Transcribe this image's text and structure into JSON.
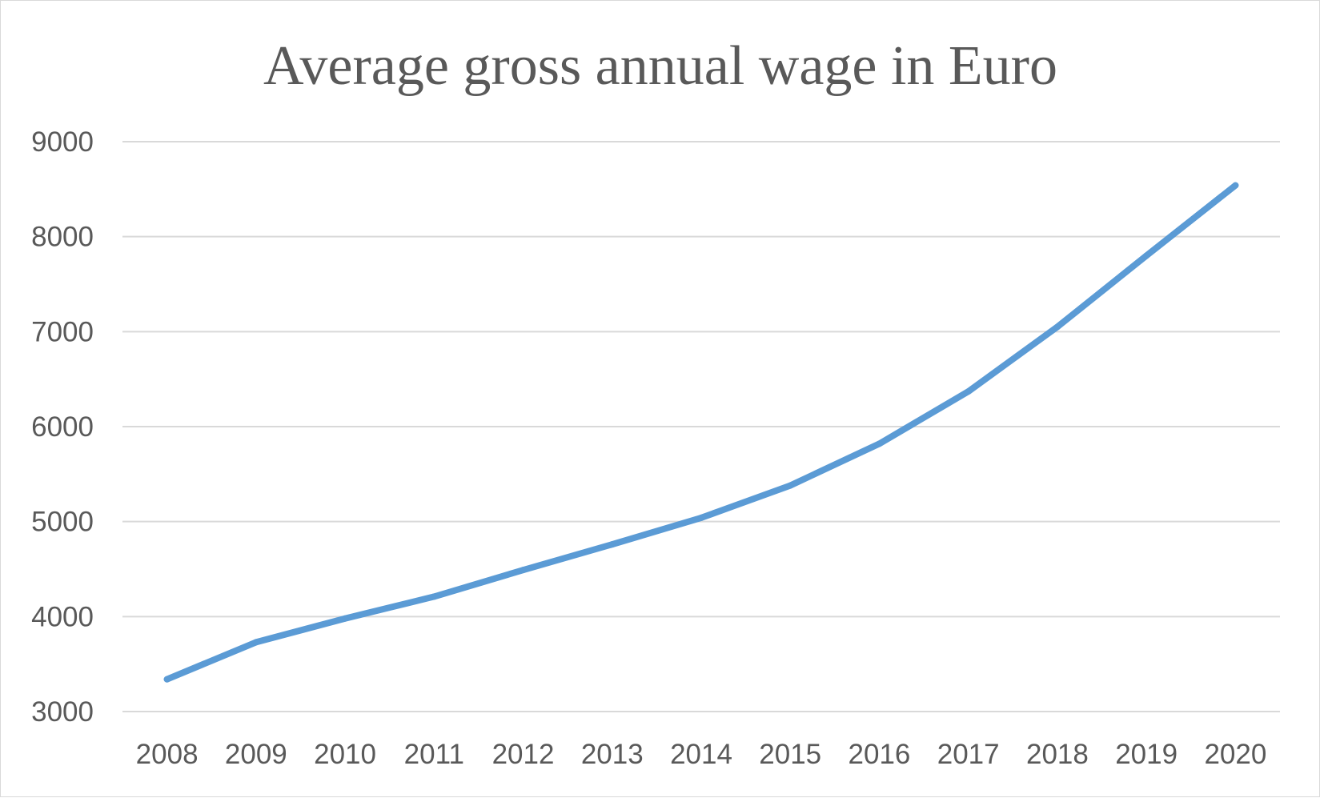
{
  "chart_data": {
    "type": "line",
    "title": "Average gross annual wage in Euro",
    "categories": [
      "2008",
      "2009",
      "2010",
      "2011",
      "2012",
      "2013",
      "2014",
      "2015",
      "2016",
      "2017",
      "2018",
      "2019",
      "2020"
    ],
    "series": [
      {
        "values": [
          3340,
          3730,
          3980,
          4210,
          4490,
          4760,
          5040,
          5380,
          5820,
          6370,
          7050,
          7800,
          8540
        ],
        "color": "#5b9bd5"
      }
    ],
    "ylim": [
      3000,
      9000
    ],
    "yticks": [
      "3000",
      "4000",
      "5000",
      "6000",
      "7000",
      "8000",
      "9000"
    ],
    "grid": true,
    "legend": "none"
  }
}
